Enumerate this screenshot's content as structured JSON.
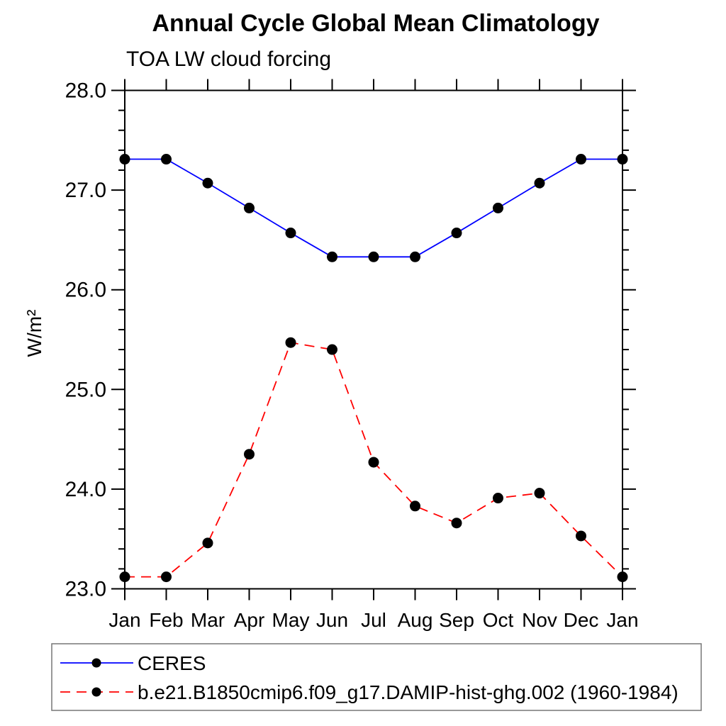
{
  "chart_data": {
    "type": "line",
    "title": "Annual Cycle Global Mean Climatology",
    "subtitle": "TOA LW cloud forcing",
    "ylabel": "W/m²",
    "xlabel": "",
    "categories": [
      "Jan",
      "Feb",
      "Mar",
      "Apr",
      "May",
      "Jun",
      "Jul",
      "Aug",
      "Sep",
      "Oct",
      "Nov",
      "Dec",
      "Jan"
    ],
    "series": [
      {
        "name": "CERES",
        "color": "#0000ff",
        "line_style": "solid",
        "marker": "filled-circle",
        "marker_color": "#000000",
        "values": [
          27.31,
          27.31,
          27.07,
          26.82,
          26.57,
          26.33,
          26.33,
          26.33,
          26.57,
          26.82,
          27.07,
          27.31,
          27.31
        ]
      },
      {
        "name": "b.e21.B1850cmip6.f09_g17.DAMIP-hist-ghg.002 (1960-1984)",
        "color": "#ff0000",
        "line_style": "dashed",
        "marker": "filled-circle",
        "marker_color": "#000000",
        "values": [
          23.12,
          23.12,
          23.46,
          24.35,
          25.47,
          25.4,
          24.27,
          23.83,
          23.66,
          23.91,
          23.96,
          23.53,
          23.12
        ]
      }
    ],
    "ylim": [
      23.0,
      28.0
    ],
    "ytick_major": 1.0,
    "ytick_minor": 0.2,
    "ytick_labels": [
      "28.0",
      "27.0",
      "26.0",
      "25.0",
      "24.0",
      "23.0"
    ],
    "grid": false,
    "legend_position": "bottom-left",
    "axis_color": "#000000",
    "background_color": "#ffffff"
  }
}
